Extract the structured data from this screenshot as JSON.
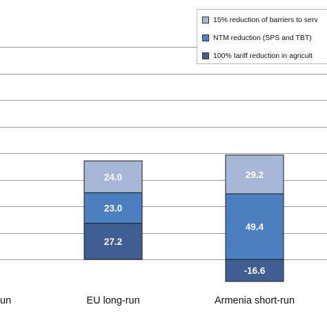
{
  "chart_data": {
    "type": "bar",
    "stacked": true,
    "categories": [
      "EU short-run",
      "EU long-run",
      "Armenia short-run"
    ],
    "category_labels_visible": [
      "un",
      "EU long-run",
      "Armenia short-run"
    ],
    "series": [
      {
        "name": "100% tariff reduction in agricult",
        "color": "#3f5f93",
        "values": [
          null,
          27.2,
          -16.6
        ]
      },
      {
        "name": "NTM reduction (SPS and TBT)",
        "color": "#4c7fbf",
        "values": [
          null,
          23.0,
          49.4
        ]
      },
      {
        "name": "15% reduction of barriers to serv",
        "color": "#a6b6d6",
        "values": [
          null,
          24.0,
          29.2
        ]
      }
    ],
    "legend_order": [
      2,
      1,
      0
    ],
    "legend_position": "top-right",
    "grid": true,
    "ylim": [
      -20,
      160
    ],
    "ytick_step": 20,
    "data_label_color": "#ffffff"
  }
}
